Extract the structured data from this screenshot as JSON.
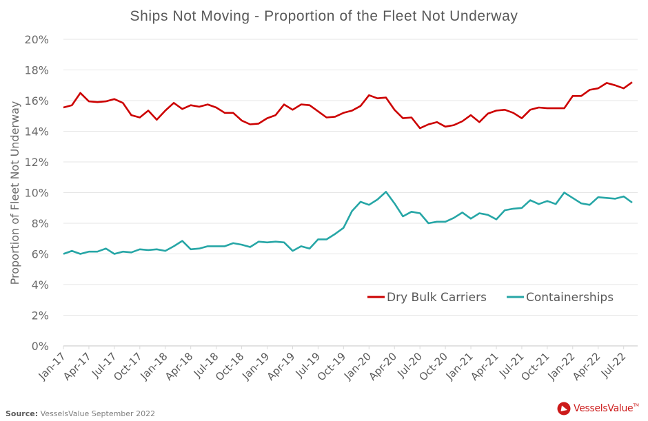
{
  "chart_data": {
    "type": "line",
    "title": "Ships Not Moving - Proportion of the Fleet Not Underway",
    "xlabel": "",
    "ylabel": "Proportion of Fleet Not Underway",
    "ylim": [
      0,
      20
    ],
    "yticks": [
      "0%",
      "2%",
      "4%",
      "6%",
      "8%",
      "10%",
      "12%",
      "14%",
      "16%",
      "18%",
      "20%"
    ],
    "ytick_values": [
      0,
      2,
      4,
      6,
      8,
      10,
      12,
      14,
      16,
      18,
      20
    ],
    "grid": true,
    "legend_position": "bottom-right",
    "x_start": "Jan-17",
    "x_frequency": "monthly",
    "xtick_labels": [
      "Jan-17",
      "Apr-17",
      "Jul-17",
      "Oct-17",
      "Jan-18",
      "Apr-18",
      "Jul-18",
      "Oct-18",
      "Jan-19",
      "Apr-19",
      "Jul-19",
      "Oct-19",
      "Jan-20",
      "Apr-20",
      "Jul-20",
      "Oct-20",
      "Jan-21",
      "Apr-21",
      "Jul-21",
      "Oct-21",
      "Jan-22",
      "Apr-22",
      "Jul-22"
    ],
    "xtick_every": 3,
    "series": [
      {
        "name": "Dry Bulk Carriers",
        "color": "#cc0000",
        "values": [
          15.55,
          15.7,
          16.5,
          15.95,
          15.9,
          15.95,
          16.1,
          15.85,
          15.05,
          14.9,
          15.35,
          14.75,
          15.35,
          15.85,
          15.45,
          15.7,
          15.6,
          15.75,
          15.55,
          15.2,
          15.2,
          14.7,
          14.45,
          14.5,
          14.85,
          15.05,
          15.75,
          15.4,
          15.75,
          15.7,
          15.3,
          14.9,
          14.95,
          15.2,
          15.35,
          15.65,
          16.35,
          16.15,
          16.2,
          15.4,
          14.85,
          14.9,
          14.2,
          14.45,
          14.6,
          14.3,
          14.4,
          14.65,
          15.05,
          14.6,
          15.15,
          15.35,
          15.4,
          15.2,
          14.85,
          15.4,
          15.55,
          15.5,
          15.5,
          15.5,
          16.3,
          16.3,
          16.7,
          16.8,
          17.15,
          17.0,
          16.8,
          17.2
        ]
      },
      {
        "name": "Containerships",
        "color": "#26a6a6",
        "values": [
          6.0,
          6.2,
          6.0,
          6.15,
          6.15,
          6.35,
          6.0,
          6.15,
          6.1,
          6.3,
          6.25,
          6.3,
          6.2,
          6.5,
          6.85,
          6.3,
          6.35,
          6.5,
          6.5,
          6.5,
          6.7,
          6.6,
          6.45,
          6.8,
          6.75,
          6.8,
          6.75,
          6.2,
          6.5,
          6.35,
          6.95,
          6.95,
          7.3,
          7.7,
          8.8,
          9.4,
          9.2,
          9.55,
          10.05,
          9.3,
          8.45,
          8.75,
          8.65,
          8.0,
          8.1,
          8.1,
          8.35,
          8.7,
          8.3,
          8.65,
          8.55,
          8.25,
          8.85,
          8.95,
          9.0,
          9.5,
          9.25,
          9.45,
          9.25,
          10.0,
          9.65,
          9.3,
          9.2,
          9.7,
          9.65,
          9.6,
          9.75,
          9.35
        ]
      }
    ]
  },
  "footer": {
    "source_label": "Source:",
    "source_text": "VesselsValue September 2022",
    "logo_text": "VesselsValue",
    "logo_tm": "TM"
  }
}
